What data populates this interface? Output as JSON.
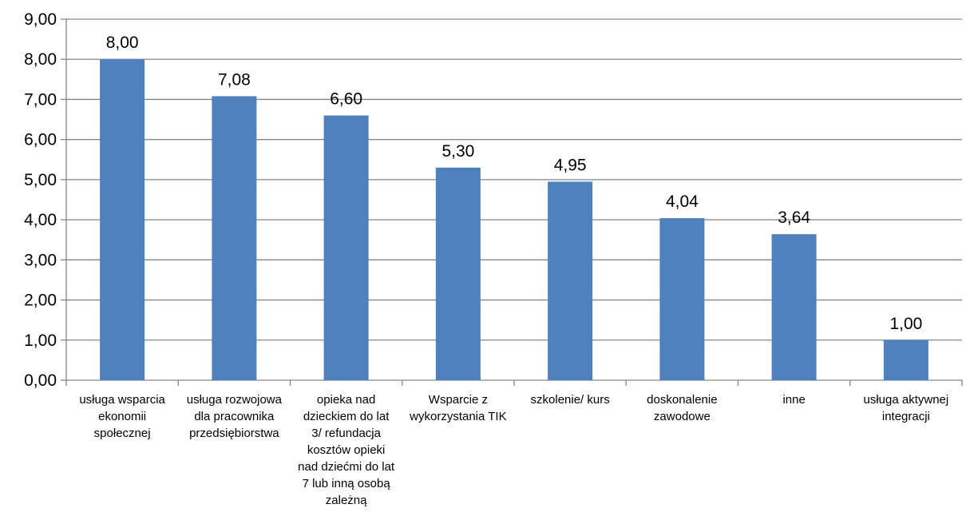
{
  "chart_data": {
    "type": "bar",
    "categories": [
      [
        "usługa wsparcia",
        "ekonomii",
        "społecznej"
      ],
      [
        "usługa rozwojowa",
        "dla pracownika",
        "przedsiębiorstwa"
      ],
      [
        "opieka nad",
        "dzieckiem do lat",
        "3/ refundacja",
        "kosztów opieki",
        "nad dziećmi do lat",
        "7 lub inną osobą",
        "zależną"
      ],
      [
        "Wsparcie z",
        "wykorzystania TIK"
      ],
      [
        "szkolenie/ kurs"
      ],
      [
        "doskonalenie",
        "zawodowe"
      ],
      [
        "inne"
      ],
      [
        "usługa aktywnej",
        "integracji"
      ]
    ],
    "values": [
      8.0,
      7.08,
      6.6,
      5.3,
      4.95,
      4.04,
      3.64,
      1.0
    ],
    "value_labels": [
      "8,00",
      "7,08",
      "6,60",
      "5,30",
      "4,95",
      "4,04",
      "3,64",
      "1,00"
    ],
    "y_ticks": [
      {
        "value": 0,
        "label": "0,00"
      },
      {
        "value": 1,
        "label": "1,00"
      },
      {
        "value": 2,
        "label": "2,00"
      },
      {
        "value": 3,
        "label": "3,00"
      },
      {
        "value": 4,
        "label": "4,00"
      },
      {
        "value": 5,
        "label": "5,00"
      },
      {
        "value": 6,
        "label": "6,00"
      },
      {
        "value": 7,
        "label": "7,00"
      },
      {
        "value": 8,
        "label": "8,00"
      },
      {
        "value": 9,
        "label": "9,00"
      }
    ],
    "ylim": [
      0,
      9
    ],
    "title": "",
    "xlabel": "",
    "ylabel": "",
    "grid": true,
    "legend": "none",
    "colors": {
      "bar": "#4F81BD",
      "grid": "#868686",
      "axis": "#868686",
      "text": "#000000"
    }
  }
}
